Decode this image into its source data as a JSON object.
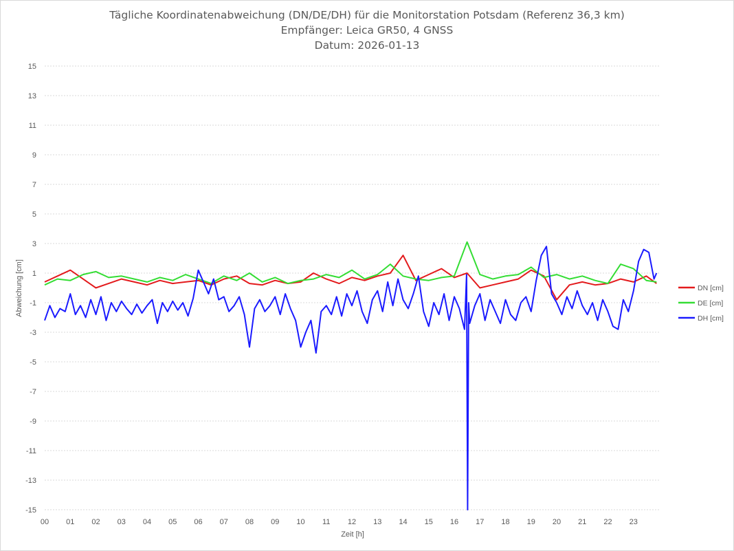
{
  "chart_data": {
    "type": "line",
    "title": "Tägliche Koordinatenabweichung (DN/DE/DH) für die Monitorstation Potsdam (Referenz 36,3 km)",
    "subtitle": "Empfänger: Leica GR50, 4 GNSS",
    "date_line": "Datum: 2026-01-13",
    "xlabel": "Zeit [h]",
    "ylabel": "Abweichung [cm]",
    "xlim": [
      0,
      24
    ],
    "ylim": [
      -15,
      15
    ],
    "x_ticks": [
      "00",
      "01",
      "02",
      "03",
      "04",
      "05",
      "06",
      "07",
      "08",
      "09",
      "10",
      "11",
      "12",
      "13",
      "14",
      "15",
      "16",
      "17",
      "18",
      "19",
      "20",
      "21",
      "22",
      "23"
    ],
    "y_ticks": [
      15,
      13,
      11,
      9,
      7,
      5,
      3,
      1,
      -1,
      -3,
      -5,
      -7,
      -9,
      -11,
      -13,
      -15
    ],
    "grid": "horizontal dotted",
    "legend_position": "right",
    "series": [
      {
        "name": "DN [cm]",
        "color": "#e31a1c",
        "x": [
          0.0,
          0.5,
          1.0,
          1.5,
          2.0,
          2.5,
          3.0,
          3.5,
          4.0,
          4.5,
          5.0,
          5.5,
          6.0,
          6.5,
          7.0,
          7.5,
          8.0,
          8.5,
          9.0,
          9.5,
          10.0,
          10.5,
          11.0,
          11.5,
          12.0,
          12.5,
          13.0,
          13.5,
          14.0,
          14.5,
          15.0,
          15.5,
          16.0,
          16.5,
          17.0,
          17.5,
          18.0,
          18.5,
          19.0,
          19.5,
          20.0,
          20.5,
          21.0,
          21.5,
          22.0,
          22.5,
          23.0,
          23.5,
          23.9
        ],
        "values": [
          0.4,
          0.8,
          1.2,
          0.6,
          0.0,
          0.3,
          0.6,
          0.4,
          0.2,
          0.5,
          0.3,
          0.4,
          0.5,
          0.2,
          0.6,
          0.8,
          0.3,
          0.2,
          0.5,
          0.3,
          0.4,
          1.0,
          0.6,
          0.3,
          0.7,
          0.5,
          0.8,
          1.0,
          2.2,
          0.5,
          0.9,
          1.3,
          0.7,
          1.0,
          0.0,
          0.2,
          0.4,
          0.6,
          1.2,
          0.8,
          -0.8,
          0.2,
          0.4,
          0.2,
          0.3,
          0.6,
          0.4,
          0.8,
          0.3
        ]
      },
      {
        "name": "DE [cm]",
        "color": "#33dd33",
        "x": [
          0.0,
          0.5,
          1.0,
          1.5,
          2.0,
          2.5,
          3.0,
          3.5,
          4.0,
          4.5,
          5.0,
          5.5,
          6.0,
          6.5,
          7.0,
          7.5,
          8.0,
          8.5,
          9.0,
          9.5,
          10.0,
          10.5,
          11.0,
          11.5,
          12.0,
          12.5,
          13.0,
          13.5,
          14.0,
          14.5,
          15.0,
          15.5,
          16.0,
          16.5,
          17.0,
          17.5,
          18.0,
          18.5,
          19.0,
          19.5,
          20.0,
          20.5,
          21.0,
          21.5,
          22.0,
          22.5,
          23.0,
          23.5,
          23.9
        ],
        "values": [
          0.2,
          0.6,
          0.5,
          0.9,
          1.1,
          0.7,
          0.8,
          0.6,
          0.4,
          0.7,
          0.5,
          0.9,
          0.6,
          0.3,
          0.8,
          0.5,
          1.0,
          0.4,
          0.7,
          0.3,
          0.5,
          0.6,
          0.9,
          0.7,
          1.2,
          0.6,
          0.9,
          1.6,
          0.8,
          0.6,
          0.5,
          0.7,
          0.8,
          3.1,
          0.9,
          0.6,
          0.8,
          0.9,
          1.4,
          0.7,
          0.9,
          0.6,
          0.8,
          0.5,
          0.3,
          1.6,
          1.3,
          0.5,
          0.4
        ]
      },
      {
        "name": "DH [cm]",
        "color": "#1a1aff",
        "x": [
          0.0,
          0.2,
          0.4,
          0.6,
          0.8,
          1.0,
          1.2,
          1.4,
          1.6,
          1.8,
          2.0,
          2.2,
          2.4,
          2.6,
          2.8,
          3.0,
          3.2,
          3.4,
          3.6,
          3.8,
          4.0,
          4.2,
          4.4,
          4.6,
          4.8,
          5.0,
          5.2,
          5.4,
          5.6,
          5.8,
          6.0,
          6.2,
          6.4,
          6.6,
          6.8,
          7.0,
          7.2,
          7.4,
          7.6,
          7.8,
          8.0,
          8.2,
          8.4,
          8.6,
          8.8,
          9.0,
          9.2,
          9.4,
          9.6,
          9.8,
          10.0,
          10.2,
          10.4,
          10.6,
          10.8,
          11.0,
          11.2,
          11.4,
          11.6,
          11.8,
          12.0,
          12.2,
          12.4,
          12.6,
          12.8,
          13.0,
          13.2,
          13.4,
          13.6,
          13.8,
          14.0,
          14.2,
          14.4,
          14.6,
          14.8,
          15.0,
          15.2,
          15.4,
          15.6,
          15.8,
          16.0,
          16.2,
          16.4,
          16.48,
          16.52,
          16.56,
          16.6,
          16.8,
          17.0,
          17.2,
          17.4,
          17.6,
          17.8,
          18.0,
          18.2,
          18.4,
          18.6,
          18.8,
          19.0,
          19.2,
          19.4,
          19.6,
          19.8,
          20.0,
          20.2,
          20.4,
          20.6,
          20.8,
          21.0,
          21.2,
          21.4,
          21.6,
          21.8,
          22.0,
          22.2,
          22.4,
          22.6,
          22.8,
          23.0,
          23.2,
          23.4,
          23.6,
          23.8,
          23.9
        ],
        "values": [
          -2.2,
          -1.2,
          -2.0,
          -1.4,
          -1.6,
          -0.4,
          -1.8,
          -1.2,
          -2.0,
          -0.8,
          -1.8,
          -0.6,
          -2.2,
          -1.0,
          -1.6,
          -0.9,
          -1.4,
          -1.8,
          -1.1,
          -1.7,
          -1.2,
          -0.8,
          -2.4,
          -1.0,
          -1.6,
          -0.9,
          -1.5,
          -1.0,
          -1.9,
          -0.7,
          1.2,
          0.4,
          -0.4,
          0.6,
          -0.8,
          -0.6,
          -1.6,
          -1.2,
          -0.6,
          -1.8,
          -4.0,
          -1.4,
          -0.8,
          -1.6,
          -1.2,
          -0.6,
          -1.8,
          -0.4,
          -1.4,
          -2.2,
          -4.0,
          -3.0,
          -2.2,
          -4.4,
          -1.6,
          -1.2,
          -1.8,
          -0.6,
          -1.9,
          -0.4,
          -1.2,
          -0.2,
          -1.6,
          -2.4,
          -0.8,
          -0.2,
          -1.6,
          0.4,
          -1.2,
          0.6,
          -0.8,
          -1.4,
          -0.4,
          0.8,
          -1.6,
          -2.6,
          -1.0,
          -1.8,
          -0.4,
          -2.2,
          -0.6,
          -1.4,
          -2.8,
          0.9,
          -15.0,
          -1.0,
          -2.4,
          -1.2,
          -0.4,
          -2.2,
          -0.8,
          -1.6,
          -2.4,
          -0.8,
          -1.8,
          -2.2,
          -1.0,
          -0.6,
          -1.6,
          0.5,
          2.2,
          2.8,
          -0.4,
          -1.0,
          -1.8,
          -0.6,
          -1.4,
          -0.2,
          -1.2,
          -1.8,
          -1.0,
          -2.2,
          -0.8,
          -1.6,
          -2.6,
          -2.8,
          -0.8,
          -1.6,
          -0.2,
          1.8,
          2.6,
          2.4,
          0.6,
          1.0
        ]
      }
    ]
  }
}
